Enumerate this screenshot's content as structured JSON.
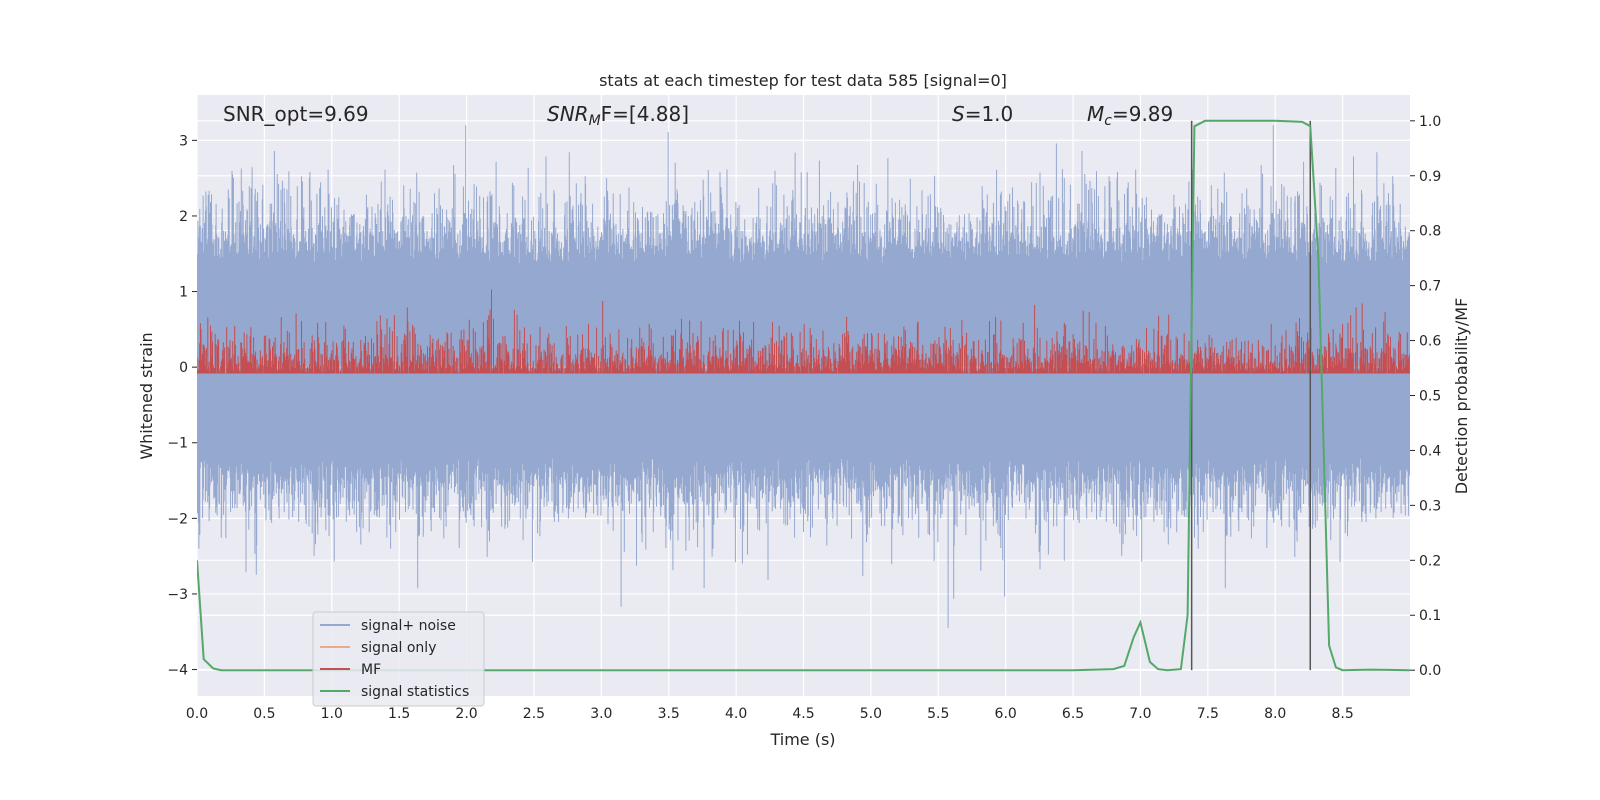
{
  "chart_data": {
    "type": "line",
    "title": "stats at each timestep for test data 585 [signal=0]",
    "xlabel": "Time (s)",
    "ylabel_left": "Whitened strain",
    "ylabel_right": "Detection probability/MF",
    "xlim": [
      0.0,
      9.0
    ],
    "ylim_left": [
      -4.35,
      3.6
    ],
    "ylim_right": [
      -0.047,
      1.047
    ],
    "x_ticks": [
      "0.0",
      "0.5",
      "1.0",
      "1.5",
      "2.0",
      "2.5",
      "3.0",
      "3.5",
      "4.0",
      "4.5",
      "5.0",
      "5.5",
      "6.0",
      "6.5",
      "7.0",
      "7.5",
      "8.0",
      "8.5"
    ],
    "y_ticks_left": [
      "3",
      "2",
      "1",
      "0",
      "−1",
      "−2",
      "−3",
      "−4"
    ],
    "y_ticks_right": [
      "1.0",
      "0.9",
      "0.8",
      "0.7",
      "0.6",
      "0.5",
      "0.4",
      "0.3",
      "0.2",
      "0.1",
      "0.0"
    ],
    "grid": true,
    "legend_position": "lower-left",
    "annotations": {
      "snr_opt": "SNR_opt=9.69",
      "snr_mf_base": "SNR",
      "snr_mf_sub": "M",
      "snr_mf_rest": "F=[4.88]",
      "s_base": "S",
      "s_rest": "=1.0",
      "mc_base": "M",
      "mc_sub": "c",
      "mc_rest": "=9.89"
    },
    "vertical_markers": [
      7.38,
      8.26
    ],
    "series": [
      {
        "name": "signal+ noise",
        "color": "#95a8cf",
        "axis": "left",
        "description_level": "noise band approx -1.6 to 2.0, peaks to ~3.2 and -4"
      },
      {
        "name": "signal only",
        "color": "#e8a98c",
        "axis": "left",
        "values_constant": 0.0
      },
      {
        "name": "MF",
        "color": "#c44e52",
        "axis": "right",
        "baseline": 0.54,
        "range": [
          0.54,
          0.7
        ]
      },
      {
        "name": "signal statistics",
        "color": "#55a868",
        "axis": "right",
        "x": [
          0.0,
          0.05,
          0.12,
          0.18,
          0.3,
          1.0,
          2.0,
          3.0,
          4.0,
          5.0,
          6.0,
          6.5,
          6.8,
          6.88,
          6.95,
          7.0,
          7.07,
          7.13,
          7.2,
          7.3,
          7.35,
          7.4,
          7.48,
          7.55,
          8.0,
          8.2,
          8.26,
          8.32,
          8.4,
          8.45,
          8.5,
          8.7,
          9.0
        ],
        "y": [
          0.2,
          0.02,
          0.003,
          0.0,
          0.0,
          0.0,
          0.0,
          0.0,
          0.0,
          0.0,
          0.0,
          0.0,
          0.002,
          0.008,
          0.06,
          0.087,
          0.015,
          0.002,
          0.0,
          0.002,
          0.1,
          0.99,
          1.0,
          1.0,
          1.0,
          0.998,
          0.99,
          0.75,
          0.045,
          0.005,
          0.0,
          0.001,
          0.0
        ]
      }
    ]
  }
}
